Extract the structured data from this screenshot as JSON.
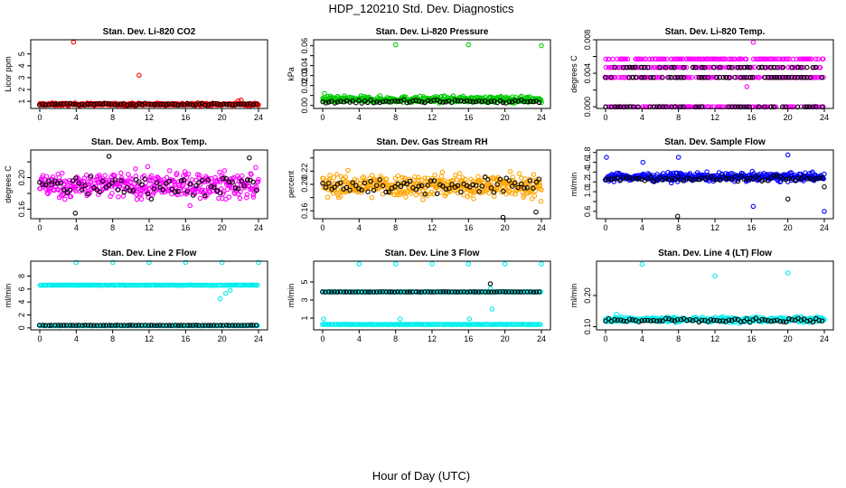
{
  "figure": {
    "title": "HDP_120210  Std. Dev. Diagnostics",
    "xlabel": "Hour of Day (UTC)",
    "x_ticks": [
      "0",
      "4",
      "8",
      "12",
      "16",
      "20",
      "24"
    ]
  },
  "chart_data": [
    {
      "type": "scatter",
      "title": "Stan. Dev. Li-820 CO2",
      "ylabel": "Licor ppm",
      "xlim": [
        0,
        24
      ],
      "ylim": [
        0.4,
        6.2
      ],
      "y_ticks": [
        1,
        2,
        3,
        4,
        5
      ],
      "y_tick_labels": [
        "1",
        "2",
        "3",
        "4",
        "5"
      ],
      "series": [
        {
          "color": "#ff0000",
          "base": 0.75,
          "spread": 0.1,
          "outliers": [
            [
              3.7,
              6.0
            ],
            [
              10.9,
              3.2
            ],
            [
              21.8,
              1.05
            ],
            [
              22.1,
              1.1
            ]
          ]
        },
        {
          "color": "#000000",
          "base": 0.75,
          "spread": 0.08,
          "outliers": []
        }
      ]
    },
    {
      "type": "scatter",
      "title": "Stan. Dev. Li-820 Pressure",
      "ylabel": "kPa",
      "xlim": [
        0,
        24
      ],
      "ylim": [
        -0.003,
        0.066
      ],
      "y_ticks": [
        0.0,
        0.01,
        0.02,
        0.03,
        0.04,
        0.05,
        0.06
      ],
      "y_tick_labels": [
        "0.00",
        "",
        "0.02",
        "0.03",
        "0.04",
        "",
        "0.06"
      ],
      "series": [
        {
          "color": "#00cc00",
          "base": 0.006,
          "spread": 0.003,
          "outliers": [
            [
              8.0,
              0.061
            ],
            [
              16.0,
              0.061
            ],
            [
              24.0,
              0.06
            ],
            [
              0.2,
              0.012
            ]
          ]
        },
        {
          "color": "#000000",
          "base": 0.004,
          "spread": 0.002,
          "outliers": []
        }
      ]
    },
    {
      "type": "scatter",
      "title": "Stan. Dev. Li-820 Temp.",
      "ylabel": "degrees C",
      "xlim": [
        0,
        24
      ],
      "ylim": [
        -0.0002,
        0.008
      ],
      "y_ticks": [
        0.0,
        0.002,
        0.004,
        0.006,
        0.008
      ],
      "y_tick_labels": [
        "0.000",
        "",
        "0.004",
        "",
        "0.008"
      ],
      "series": [
        {
          "color": "#ff00ff",
          "levels": [
            0.0,
            0.0035,
            0.0047,
            0.0057
          ],
          "extra": [
            [
              16.2,
              0.0077
            ],
            [
              15.5,
              0.0024
            ]
          ]
        },
        {
          "color": "#000000",
          "levels": [
            0.0,
            0.0035,
            0.0047
          ],
          "extra": []
        }
      ]
    },
    {
      "type": "scatter",
      "title": "Stan. Dev. Amb. Box Temp.",
      "ylabel": "degrees C",
      "xlim": [
        0,
        24
      ],
      "ylim": [
        0.148,
        0.235
      ],
      "y_ticks": [
        0.16,
        0.18,
        0.2,
        0.22
      ],
      "y_tick_labels": [
        "0.16",
        "",
        "0.20",
        ""
      ],
      "series": [
        {
          "color": "#ff00ff",
          "base": 0.19,
          "spread": 0.016,
          "outliers": []
        },
        {
          "color": "#000000",
          "base": 0.19,
          "spread": 0.013,
          "outliers": [
            [
              3.9,
              0.155
            ],
            [
              7.6,
              0.227
            ],
            [
              23.0,
              0.225
            ]
          ]
        }
      ]
    },
    {
      "type": "scatter",
      "title": "Stan. Dev. Gas Stream RH",
      "ylabel": "percent",
      "xlim": [
        0,
        24
      ],
      "ylim": [
        0.148,
        0.252
      ],
      "y_ticks": [
        0.16,
        0.18,
        0.2,
        0.22,
        0.24
      ],
      "y_tick_labels": [
        "0.16",
        "",
        "0.20",
        "0.22",
        ""
      ],
      "series": [
        {
          "color": "#ffa500",
          "base": 0.198,
          "spread": 0.017,
          "outliers": []
        },
        {
          "color": "#000000",
          "base": 0.198,
          "spread": 0.013,
          "outliers": [
            [
              19.8,
              0.15
            ],
            [
              23.4,
              0.158
            ]
          ]
        }
      ]
    },
    {
      "type": "scatter",
      "title": "Stan. Dev. Sample Flow",
      "ylabel": "ml/min",
      "xlim": [
        0,
        24
      ],
      "ylim": [
        0.45,
        1.85
      ],
      "y_ticks": [
        0.6,
        0.8,
        1.0,
        1.2,
        1.4,
        1.6,
        1.8
      ],
      "y_tick_labels": [
        "0.6",
        "",
        "1.0",
        "1.2",
        "1.4",
        "1.6",
        "1.8"
      ],
      "series": [
        {
          "color": "#0000ff",
          "base": 1.3,
          "spread": 0.08,
          "outliers": [
            [
              8.0,
              1.7
            ],
            [
              24.0,
              0.6
            ],
            [
              16.2,
              0.7
            ],
            [
              20.0,
              1.75
            ],
            [
              4.1,
              1.6
            ],
            [
              0.1,
              1.7
            ]
          ]
        },
        {
          "color": "#000000",
          "base": 1.27,
          "spread": 0.05,
          "outliers": [
            [
              7.9,
              0.5
            ],
            [
              20.0,
              0.85
            ],
            [
              24.0,
              1.1
            ]
          ]
        }
      ]
    },
    {
      "type": "scatter",
      "title": "Stan. Dev. Line 2 Flow",
      "ylabel": "ml/min",
      "xlim": [
        0,
        24
      ],
      "ylim": [
        -0.3,
        10.3
      ],
      "y_ticks": [
        0,
        2,
        4,
        6,
        8
      ],
      "y_tick_labels": [
        "0",
        "2",
        "4",
        "6",
        "8"
      ],
      "series": [
        {
          "color": "#00eeee",
          "levels": [
            6.6,
            0.35
          ],
          "outliers": [
            [
              4.0,
              10.1
            ],
            [
              8.0,
              10.1
            ],
            [
              12.0,
              10.1
            ],
            [
              16.0,
              10.1
            ],
            [
              20.0,
              10.1
            ],
            [
              24.0,
              10.1
            ],
            [
              19.8,
              4.5
            ],
            [
              20.4,
              5.3
            ],
            [
              20.9,
              5.8
            ]
          ]
        },
        {
          "color": "#000000",
          "levels": [
            0.4
          ],
          "outliers": []
        }
      ]
    },
    {
      "type": "scatter",
      "title": "Stan. Dev. Line 3 Flow",
      "ylabel": "ml/min",
      "xlim": [
        0,
        24
      ],
      "ylim": [
        -0.3,
        7.3
      ],
      "y_ticks": [
        1,
        3,
        5
      ],
      "y_tick_labels": [
        "1",
        "3",
        "5"
      ],
      "series": [
        {
          "color": "#00eeee",
          "levels": [
            3.9,
            0.3
          ],
          "outliers": [
            [
              4.0,
              7.0
            ],
            [
              8.0,
              7.0
            ],
            [
              12.0,
              7.0
            ],
            [
              16.0,
              7.0
            ],
            [
              20.0,
              7.0
            ],
            [
              24.0,
              7.0
            ],
            [
              18.6,
              2.0
            ],
            [
              18.4,
              4.3
            ],
            [
              8.5,
              0.9
            ],
            [
              0.1,
              0.9
            ],
            [
              16.1,
              0.9
            ]
          ]
        },
        {
          "color": "#000000",
          "levels": [
            3.9
          ],
          "outliers": [
            [
              18.4,
              4.8
            ]
          ]
        }
      ]
    },
    {
      "type": "scatter",
      "title": "Stan. Dev. Line 4 (LT) Flow",
      "ylabel": "ml/min",
      "xlim": [
        0,
        24
      ],
      "ylim": [
        0.09,
        0.31
      ],
      "y_ticks": [
        0.1,
        0.2
      ],
      "y_tick_labels": [
        "0.10",
        "0.20"
      ],
      "series": [
        {
          "color": "#00eeee",
          "base": 0.123,
          "spread": 0.008,
          "outliers": [
            [
              4.0,
              0.3
            ],
            [
              12.0,
              0.263
            ],
            [
              20.0,
              0.272
            ],
            [
              1.2,
              0.14
            ]
          ]
        },
        {
          "color": "#000000",
          "base": 0.12,
          "spread": 0.007,
          "outliers": []
        }
      ]
    }
  ]
}
